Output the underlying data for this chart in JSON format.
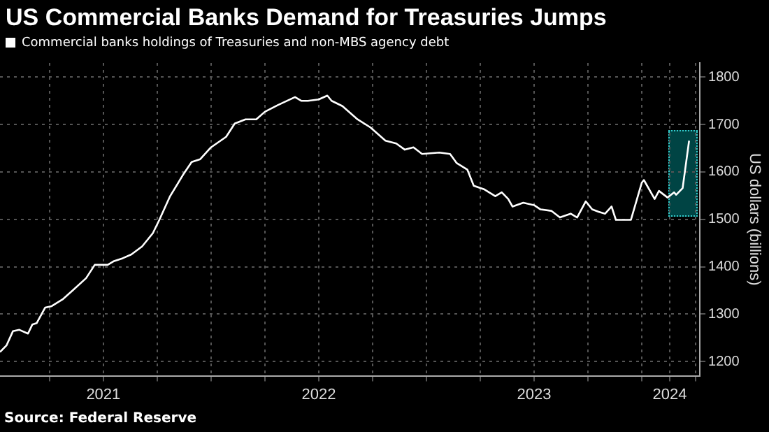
{
  "chart_data": {
    "type": "line",
    "title": "US Commercial Banks Demand for Treasuries Jumps",
    "ylabel": "US dollars (billions)",
    "annotations": [
      "Source: Federal Reserve"
    ],
    "x": [
      2021.02,
      2021.05,
      2021.08,
      2021.11,
      2021.15,
      2021.17,
      2021.19,
      2021.23,
      2021.26,
      2021.31,
      2021.36,
      2021.42,
      2021.46,
      2021.52,
      2021.55,
      2021.59,
      2021.63,
      2021.68,
      2021.73,
      2021.76,
      2021.81,
      2021.87,
      2021.91,
      2021.95,
      2022.0,
      2022.07,
      2022.11,
      2022.16,
      2022.21,
      2022.25,
      2022.31,
      2022.39,
      2022.42,
      2022.45,
      2022.5,
      2022.54,
      2022.56,
      2022.61,
      2022.68,
      2022.74,
      2022.81,
      2022.86,
      2022.9,
      2022.94,
      2022.98,
      2023.06,
      2023.11,
      2023.14,
      2023.19,
      2023.22,
      2023.27,
      2023.32,
      2023.35,
      2023.38,
      2023.4,
      2023.45,
      2023.5,
      2023.53,
      2023.58,
      2023.62,
      2023.67,
      2023.7,
      2023.74,
      2023.77,
      2023.8,
      2023.83,
      2023.86,
      2023.88,
      2023.95,
      2024.0,
      2024.01,
      2024.06,
      2024.08,
      2024.12,
      2024.15,
      2024.16,
      2024.19,
      2024.22
    ],
    "series": [
      {
        "name": "Commercial banks holdings of Treasuries and non-MBS agency debt",
        "color": "#ffffff",
        "values": [
          1220,
          1234,
          1264,
          1267,
          1259,
          1278,
          1281,
          1314,
          1317,
          1331,
          1351,
          1376,
          1404,
          1404,
          1412,
          1418,
          1426,
          1443,
          1471,
          1499,
          1549,
          1594,
          1621,
          1627,
          1652,
          1674,
          1702,
          1711,
          1711,
          1727,
          1741,
          1758,
          1750,
          1750,
          1753,
          1761,
          1750,
          1739,
          1711,
          1694,
          1666,
          1660,
          1647,
          1652,
          1638,
          1641,
          1638,
          1619,
          1605,
          1571,
          1563,
          1549,
          1557,
          1543,
          1527,
          1535,
          1530,
          1521,
          1518,
          1504,
          1512,
          1504,
          1538,
          1521,
          1516,
          1512,
          1527,
          1499,
          1499,
          1577,
          1583,
          1543,
          1560,
          1546,
          1557,
          1552,
          1566,
          1666
        ]
      }
    ],
    "xlim": [
      2021.02,
      2024.27
    ],
    "xticks": [
      {
        "value": 2021.25,
        "label": null
      },
      {
        "value": 2021.5,
        "label": "2021"
      },
      {
        "value": 2021.75,
        "label": null
      },
      {
        "value": 2022,
        "label": null
      },
      {
        "value": 2022.25,
        "label": null
      },
      {
        "value": 2022.5,
        "label": "2022"
      },
      {
        "value": 2022.75,
        "label": null
      },
      {
        "value": 2023,
        "label": null
      },
      {
        "value": 2023.25,
        "label": null
      },
      {
        "value": 2023.5,
        "label": "2023"
      },
      {
        "value": 2023.75,
        "label": null
      },
      {
        "value": 2024,
        "label": null
      },
      {
        "value": 2024.13,
        "label": "2024"
      },
      {
        "value": 2024.25,
        "label": null
      }
    ],
    "ylim": [
      1170,
      1830
    ],
    "yticks": [
      1200,
      1300,
      1400,
      1500,
      1600,
      1700,
      1800
    ],
    "grid": true,
    "legend": "top left",
    "marker": "none",
    "line_style": "solid"
  }
}
